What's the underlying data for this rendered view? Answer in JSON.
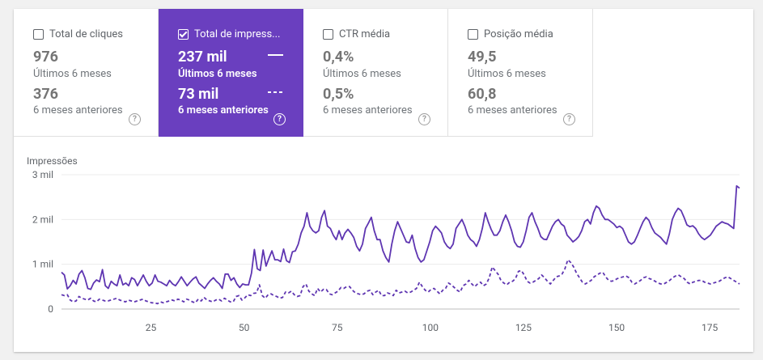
{
  "metrics": [
    {
      "label": "Total de cliques",
      "value": "976",
      "period": "Últimos 6 meses",
      "prev_value": "376",
      "prev_period": "6 meses anteriores",
      "active": false,
      "help_icon": "?"
    },
    {
      "label": "Total de impress...",
      "value": "237 mil",
      "period": "Últimos 6 meses",
      "prev_value": "73 mil",
      "prev_period": "6 meses anteriores",
      "active": true,
      "help_icon": "?"
    },
    {
      "label": "CTR média",
      "value": "0,4%",
      "period": "Últimos 6 meses",
      "prev_value": "0,5%",
      "prev_period": "6 meses anteriores",
      "active": false,
      "help_icon": "?"
    },
    {
      "label": "Posição média",
      "value": "49,5",
      "period": "Últimos 6 meses",
      "prev_value": "60,8",
      "prev_period": "6 meses anteriores",
      "active": false,
      "help_icon": "?"
    }
  ],
  "colors": {
    "accent": "#6a3fbf",
    "line": "#5e35b1"
  },
  "chart_data": {
    "type": "line",
    "title": "",
    "ylabel": "Impressões",
    "xlabel": "",
    "xlim": [
      1,
      183
    ],
    "ylim": [
      0,
      3000
    ],
    "x_ticks": [
      25,
      50,
      75,
      100,
      125,
      150,
      175
    ],
    "y_ticks": [
      {
        "value": 0,
        "label": "0"
      },
      {
        "value": 1000,
        "label": "1 mil"
      },
      {
        "value": 2000,
        "label": "2 mil"
      },
      {
        "value": 3000,
        "label": "3 mil"
      }
    ],
    "grid": true,
    "series": [
      {
        "style": "solid",
        "values": [
          820,
          760,
          450,
          520,
          640,
          560,
          780,
          860,
          700,
          460,
          440,
          580,
          650,
          610,
          880,
          520,
          460,
          620,
          560,
          520,
          760,
          540,
          580,
          520,
          700,
          660,
          520,
          640,
          760,
          620,
          520,
          580,
          760,
          620,
          600,
          560,
          520,
          640,
          560,
          520,
          610,
          720,
          620,
          520,
          600,
          670,
          720,
          580,
          520,
          460,
          560,
          640,
          700,
          620,
          560,
          460,
          780,
          780,
          640,
          700,
          560,
          480,
          560,
          540,
          540,
          800,
          1330,
          900,
          860,
          1320,
          960,
          1140,
          1300,
          1100,
          1100,
          1060,
          1340,
          1080,
          1040,
          1280,
          1300,
          1450,
          1700,
          1850,
          2150,
          1850,
          1750,
          1700,
          1750,
          2050,
          2200,
          1850,
          1800,
          1650,
          1550,
          1750,
          1550,
          1700,
          1780,
          1700,
          1600,
          1400,
          1300,
          1450,
          1800,
          1920,
          2050,
          1750,
          1550,
          1550,
          1300,
          1150,
          1050,
          1450,
          1750,
          1950,
          1800,
          1650,
          1500,
          1480,
          1650,
          1350,
          1150,
          1050,
          1100,
          1300,
          1500,
          1750,
          1850,
          1780,
          1700,
          1500,
          1400,
          1350,
          1450,
          1800,
          1900,
          2000,
          1850,
          1650,
          1550,
          1500,
          1400,
          1550,
          1800,
          2150,
          1950,
          1780,
          1650,
          1650,
          1750,
          1950,
          2100,
          1950,
          1750,
          1500,
          1400,
          1380,
          1500,
          1750,
          2050,
          2150,
          1950,
          1800,
          1620,
          1560,
          1550,
          1700,
          1850,
          1950,
          2000,
          1900,
          1850,
          1650,
          1580,
          1500,
          1550,
          1620,
          1750,
          1950,
          2000,
          1900,
          2150,
          2300,
          2250,
          2100,
          2000,
          2000,
          1950,
          1900,
          1820,
          1850,
          1800,
          1650,
          1500,
          1450,
          1500,
          1640,
          1800,
          1950,
          2050,
          1980,
          1820,
          1700,
          1650,
          1600,
          1520,
          1450,
          1680,
          2000,
          2150,
          2250,
          2200,
          2050,
          1880,
          1840,
          1860,
          1800,
          1680,
          1600,
          1550,
          1600,
          1650,
          1750,
          1850,
          1900,
          1950,
          1920,
          1900,
          1850,
          1800,
          2750,
          2700
        ]
      },
      {
        "style": "dashed",
        "values": [
          320,
          300,
          320,
          200,
          160,
          180,
          280,
          240,
          220,
          200,
          240,
          180,
          160,
          220,
          200,
          180,
          180,
          200,
          220,
          240,
          200,
          180,
          160,
          200,
          180,
          160,
          180,
          200,
          220,
          180,
          160,
          140,
          140,
          120,
          160,
          140,
          160,
          180,
          200,
          180,
          220,
          200,
          160,
          220,
          200,
          160,
          140,
          220,
          180,
          260,
          200,
          180,
          160,
          200,
          220,
          180,
          240,
          200,
          160,
          160,
          280,
          300,
          200,
          250,
          320,
          300,
          350,
          360,
          540,
          300,
          240,
          320,
          340,
          300,
          280,
          240,
          260,
          380,
          360,
          400,
          320,
          280,
          300,
          500,
          560,
          400,
          340,
          300,
          460,
          380,
          440,
          440,
          340,
          320,
          360,
          400,
          480,
          460,
          500,
          500,
          420,
          360,
          340,
          320,
          340,
          400,
          420,
          320,
          380,
          420,
          300,
          300,
          360,
          340,
          300,
          420,
          360,
          380,
          400,
          360,
          380,
          420,
          460,
          600,
          500,
          420,
          380,
          440,
          460,
          400,
          340,
          420,
          460,
          580,
          540,
          480,
          420,
          380,
          520,
          560,
          640,
          560,
          500,
          560,
          600,
          520,
          560,
          700,
          940,
          860,
          780,
          640,
          580,
          540,
          600,
          620,
          680,
          840,
          860,
          760,
          620,
          580,
          600,
          640,
          680,
          760,
          700,
          620,
          560,
          640,
          720,
          740,
          780,
          900,
          1100,
          1040,
          940,
          800,
          700,
          600,
          560,
          600,
          640,
          720,
          760,
          800,
          820,
          720,
          640,
          620,
          640,
          680,
          700,
          720,
          740,
          700,
          600,
          560,
          600,
          640,
          700,
          720,
          680,
          660,
          620,
          580,
          560,
          560,
          600,
          640,
          700,
          740,
          760,
          720,
          680,
          600,
          560,
          600,
          620,
          640,
          640,
          600,
          580,
          560,
          580,
          600,
          620,
          660,
          700,
          720,
          680,
          640,
          600,
          560
        ]
      }
    ]
  }
}
